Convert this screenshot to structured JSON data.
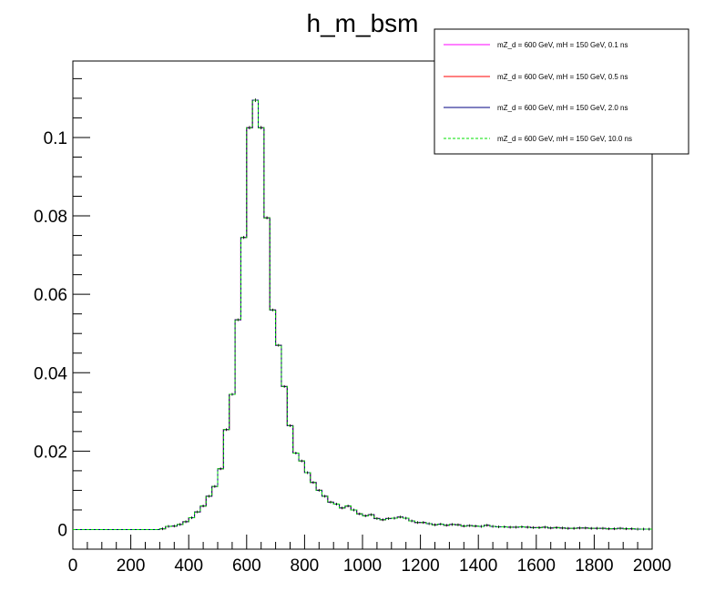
{
  "chart_data": {
    "type": "line",
    "title": "h_m_bsm",
    "xlabel": "",
    "ylabel": "",
    "xlim": [
      0,
      2000
    ],
    "ylim": [
      -0.005,
      0.1195
    ],
    "grid": false,
    "legend_position": "top-right",
    "x_tick_labels": [
      "0",
      "200",
      "400",
      "600",
      "800",
      "1000",
      "1200",
      "1400",
      "1600",
      "1800",
      "2000"
    ],
    "y_tick_labels": [
      "0",
      "0.02",
      "0.04",
      "0.06",
      "0.08",
      "0.1"
    ],
    "bin_width": 20,
    "x": [
      10,
      30,
      50,
      70,
      90,
      110,
      130,
      150,
      170,
      190,
      210,
      230,
      250,
      270,
      290,
      310,
      330,
      350,
      370,
      390,
      410,
      430,
      450,
      470,
      490,
      510,
      530,
      550,
      570,
      590,
      610,
      630,
      650,
      670,
      690,
      710,
      730,
      750,
      770,
      790,
      810,
      830,
      850,
      870,
      890,
      910,
      930,
      950,
      970,
      990,
      1010,
      1030,
      1050,
      1070,
      1090,
      1110,
      1130,
      1150,
      1170,
      1190,
      1210,
      1230,
      1250,
      1270,
      1290,
      1310,
      1330,
      1350,
      1370,
      1390,
      1410,
      1430,
      1450,
      1470,
      1490,
      1510,
      1530,
      1550,
      1570,
      1590,
      1610,
      1630,
      1650,
      1670,
      1690,
      1710,
      1730,
      1750,
      1770,
      1790,
      1810,
      1830,
      1850,
      1870,
      1890,
      1910,
      1930,
      1950,
      1970,
      1990
    ],
    "series": [
      {
        "name": "mZ_d = 600 GeV, mH = 150 GeV, 0.1 ns",
        "color": "#ff00ff",
        "style": "solid",
        "values": [
          0,
          0,
          0,
          0,
          0,
          0,
          0,
          0,
          0,
          0,
          0,
          0,
          0,
          0,
          0,
          0.0002,
          0.0008,
          0.0009,
          0.0013,
          0.002,
          0.003,
          0.0045,
          0.006,
          0.0085,
          0.011,
          0.0155,
          0.0255,
          0.0345,
          0.0535,
          0.0745,
          0.1025,
          0.1095,
          0.1025,
          0.0795,
          0.056,
          0.047,
          0.0365,
          0.0265,
          0.0195,
          0.0175,
          0.0145,
          0.012,
          0.01,
          0.0085,
          0.007,
          0.0065,
          0.0055,
          0.006,
          0.005,
          0.004,
          0.0035,
          0.0038,
          0.0028,
          0.0025,
          0.0028,
          0.0029,
          0.0032,
          0.0029,
          0.0022,
          0.0018,
          0.0018,
          0.0015,
          0.0012,
          0.0014,
          0.0011,
          0.0013,
          0.0012,
          0.0009,
          0.001,
          0.0009,
          0.0008,
          0.0011,
          0.0008,
          0.0007,
          0.0007,
          0.0006,
          0.0006,
          0.0007,
          0.0006,
          0.0005,
          0.0005,
          0.0006,
          0.0004,
          0.0005,
          0.0004,
          0.0003,
          0.0003,
          0.0004,
          0.0004,
          0.0003,
          0.0003,
          0.0003,
          0.0002,
          0.0002,
          0.0003,
          0.0002,
          0.0002,
          0.0001,
          0.0001,
          0.0001
        ]
      },
      {
        "name": "mZ_d = 600 GeV, mH = 150 GeV, 0.5 ns",
        "color": "#ff0000",
        "style": "solid",
        "values": [
          0,
          0,
          0,
          0,
          0,
          0,
          0,
          0,
          0,
          0,
          0,
          0,
          0,
          0,
          0,
          0.0002,
          0.0008,
          0.0009,
          0.0013,
          0.002,
          0.003,
          0.0045,
          0.006,
          0.0085,
          0.011,
          0.0155,
          0.0255,
          0.0345,
          0.0535,
          0.0745,
          0.1025,
          0.1095,
          0.1025,
          0.0795,
          0.056,
          0.047,
          0.0365,
          0.0265,
          0.0195,
          0.0175,
          0.0145,
          0.012,
          0.01,
          0.0085,
          0.007,
          0.0065,
          0.0055,
          0.006,
          0.005,
          0.004,
          0.0035,
          0.0038,
          0.0028,
          0.0025,
          0.0028,
          0.0029,
          0.0032,
          0.0029,
          0.0022,
          0.0018,
          0.0018,
          0.0015,
          0.0012,
          0.0014,
          0.0011,
          0.0013,
          0.0012,
          0.0009,
          0.001,
          0.0009,
          0.0008,
          0.0011,
          0.0008,
          0.0007,
          0.0007,
          0.0006,
          0.0006,
          0.0007,
          0.0006,
          0.0005,
          0.0005,
          0.0006,
          0.0004,
          0.0005,
          0.0004,
          0.0003,
          0.0003,
          0.0004,
          0.0004,
          0.0003,
          0.0003,
          0.0003,
          0.0002,
          0.0002,
          0.0003,
          0.0002,
          0.0002,
          0.0001,
          0.0001,
          0.0001
        ]
      },
      {
        "name": "mZ_d = 600 GeV, mH = 150 GeV, 2.0 ns",
        "color": "#000080",
        "style": "solid",
        "values": [
          0,
          0,
          0,
          0,
          0,
          0,
          0,
          0,
          0,
          0,
          0,
          0,
          0,
          0,
          0,
          0.0002,
          0.0008,
          0.0009,
          0.0013,
          0.002,
          0.003,
          0.0045,
          0.006,
          0.0085,
          0.011,
          0.0155,
          0.0255,
          0.0345,
          0.0535,
          0.0745,
          0.1025,
          0.1095,
          0.1025,
          0.0795,
          0.056,
          0.047,
          0.0365,
          0.0265,
          0.0195,
          0.0175,
          0.0145,
          0.012,
          0.01,
          0.0085,
          0.007,
          0.0065,
          0.0055,
          0.006,
          0.005,
          0.004,
          0.0035,
          0.0038,
          0.0028,
          0.0025,
          0.0028,
          0.0029,
          0.0032,
          0.0029,
          0.0022,
          0.0018,
          0.0018,
          0.0015,
          0.0012,
          0.0014,
          0.0011,
          0.0013,
          0.0012,
          0.0009,
          0.001,
          0.0009,
          0.0008,
          0.0011,
          0.0008,
          0.0007,
          0.0007,
          0.0006,
          0.0006,
          0.0007,
          0.0006,
          0.0005,
          0.0005,
          0.0006,
          0.0004,
          0.0005,
          0.0004,
          0.0003,
          0.0003,
          0.0004,
          0.0004,
          0.0003,
          0.0003,
          0.0003,
          0.0002,
          0.0002,
          0.0003,
          0.0002,
          0.0002,
          0.0001,
          0.0001,
          0.0001
        ]
      },
      {
        "name": "mZ_d = 600 GeV, mH = 150 GeV, 10.0 ns",
        "color": "#00e000",
        "style": "dashed",
        "values": [
          0,
          0,
          0,
          0,
          0,
          0,
          0,
          0,
          0,
          0,
          0,
          0,
          0,
          0,
          0,
          0.0002,
          0.0008,
          0.0009,
          0.0013,
          0.002,
          0.003,
          0.0045,
          0.006,
          0.0085,
          0.011,
          0.0155,
          0.0255,
          0.0345,
          0.0535,
          0.0745,
          0.1025,
          0.1095,
          0.1025,
          0.0795,
          0.056,
          0.047,
          0.0365,
          0.0265,
          0.0195,
          0.0175,
          0.0145,
          0.012,
          0.01,
          0.0085,
          0.007,
          0.0065,
          0.0055,
          0.006,
          0.005,
          0.004,
          0.0035,
          0.0038,
          0.0028,
          0.0025,
          0.0028,
          0.0029,
          0.0032,
          0.0029,
          0.0022,
          0.0018,
          0.0018,
          0.0015,
          0.0012,
          0.0014,
          0.0011,
          0.0013,
          0.0012,
          0.0009,
          0.001,
          0.0009,
          0.0008,
          0.0011,
          0.0008,
          0.0007,
          0.0007,
          0.0006,
          0.0006,
          0.0007,
          0.0006,
          0.0005,
          0.0005,
          0.0006,
          0.0004,
          0.0005,
          0.0004,
          0.0003,
          0.0003,
          0.0004,
          0.0004,
          0.0003,
          0.0003,
          0.0003,
          0.0002,
          0.0002,
          0.0003,
          0.0002,
          0.0002,
          0.0001,
          0.0001,
          0.0001
        ]
      }
    ]
  }
}
